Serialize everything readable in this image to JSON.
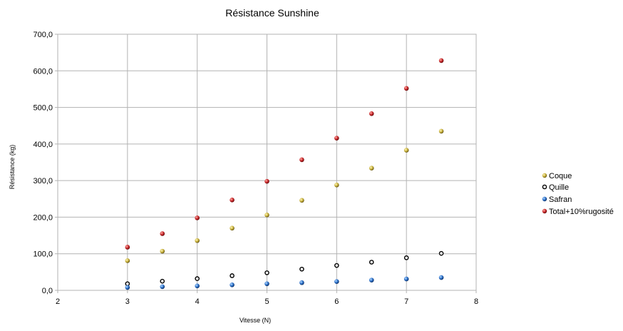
{
  "chart_data": {
    "type": "scatter",
    "title": "Résistance  Sunshine",
    "xlabel": "Vitesse (N)",
    "ylabel": "Résistance (kg)",
    "xlim": [
      2,
      8
    ],
    "ylim": [
      0,
      700
    ],
    "x_ticks": [
      "2",
      "3",
      "4",
      "5",
      "6",
      "7",
      "8"
    ],
    "y_ticks": [
      "0,0",
      "100,0",
      "200,0",
      "300,0",
      "400,0",
      "500,0",
      "600,0",
      "700,0"
    ],
    "grid": true,
    "legend_position": "right",
    "x": [
      3,
      3.5,
      4,
      4.5,
      5,
      5.5,
      6,
      6.5,
      7,
      7.5
    ],
    "series": [
      {
        "name": "Coque",
        "color": "#c8b23a",
        "values": [
          81,
          107,
          136,
          170,
          206,
          246,
          288,
          334,
          383,
          435
        ]
      },
      {
        "name": "Quille",
        "color": "#ffffff",
        "values": [
          18,
          25,
          32,
          40,
          48,
          58,
          68,
          77,
          89,
          101
        ]
      },
      {
        "name": "Safran",
        "color": "#2a6fc9",
        "values": [
          8,
          10,
          12,
          15,
          18,
          21,
          24,
          28,
          31,
          35
        ]
      },
      {
        "name": "Total+10%rugosité",
        "color": "#c8262a",
        "values": [
          118,
          155,
          198,
          247,
          298,
          357,
          416,
          483,
          552,
          628
        ]
      }
    ]
  }
}
